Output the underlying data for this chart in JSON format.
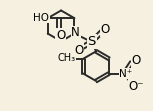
{
  "background_color": "#f5f0e0",
  "bond_color": "#2a2a2a",
  "text_color": "#000000",
  "line_width": 1.4,
  "font_size": 7.5,
  "xlim": [
    -1.8,
    2.6
  ],
  "ylim": [
    -2.2,
    1.5
  ]
}
